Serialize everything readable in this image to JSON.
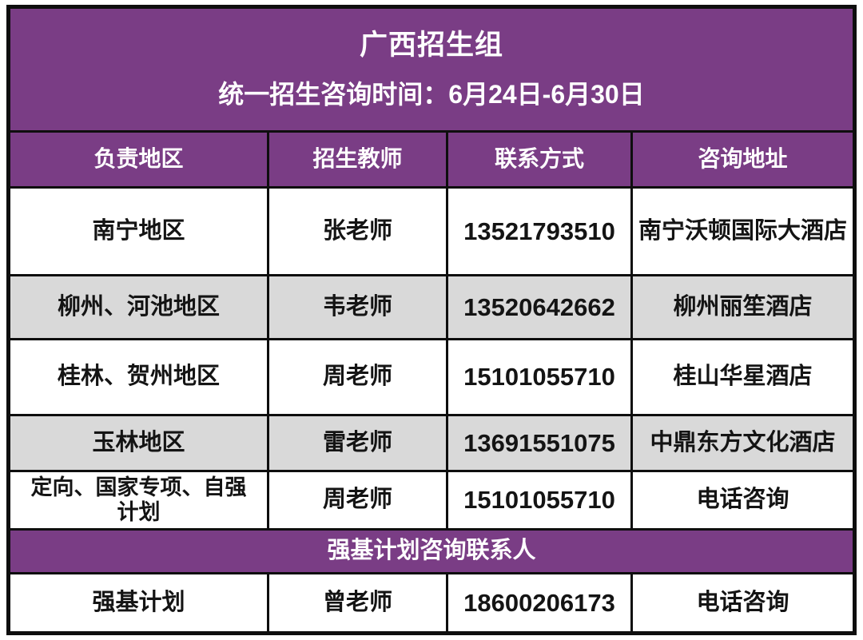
{
  "colors": {
    "purple": "#7a3d85",
    "shaded_row": "#d9d9d9",
    "border": "#0e0e0e",
    "body_text": "#141414",
    "header_text": "#ffffff",
    "background": "#ffffff"
  },
  "header": {
    "title": "广西招生组",
    "subtitle": "统一招生咨询时间：6月24日-6月30日"
  },
  "table": {
    "columns": {
      "region": "负责地区",
      "teacher": "招生教师",
      "phone": "联系方式",
      "address": "咨询地址"
    },
    "rows": [
      {
        "region": "南宁地区",
        "teacher": "张老师",
        "phone": "13521793510",
        "address": "南宁沃顿国际大酒店"
      },
      {
        "region": "柳州、河池地区",
        "teacher": "韦老师",
        "phone": "13520642662",
        "address": "柳州丽笙酒店"
      },
      {
        "region": "桂林、贺州地区",
        "teacher": "周老师",
        "phone": "15101055710",
        "address": "桂山华星酒店"
      },
      {
        "region": "玉林地区",
        "teacher": "雷老师",
        "phone": "13691551075",
        "address": "中鼎东方文化酒店"
      },
      {
        "region": "定向、国家专项、自强计划",
        "teacher": "周老师",
        "phone": "15101055710",
        "address": "电话咨询"
      }
    ],
    "section_header": "强基计划咨询联系人",
    "section_rows": [
      {
        "region": "强基计划",
        "teacher": "曾老师",
        "phone": "18600206173",
        "address": "电话咨询"
      }
    ]
  }
}
